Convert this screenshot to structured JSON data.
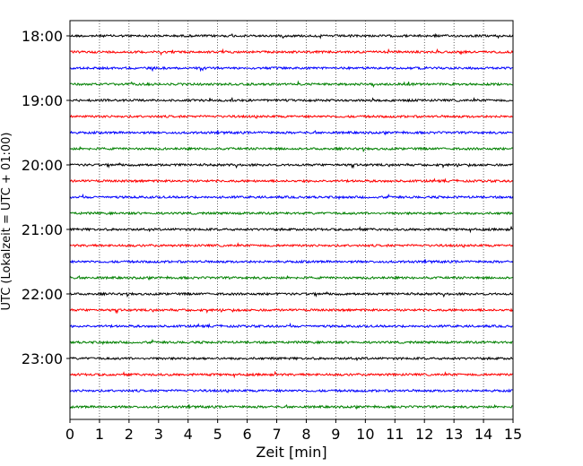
{
  "chart_data": {
    "type": "line",
    "title": "",
    "xlabel": "Zeit  [min]",
    "ylabel": "UTC (Lokalzeit = UTC + 01:00)",
    "xlim": [
      0,
      15
    ],
    "x_ticks": [
      "0",
      "1",
      "2",
      "3",
      "4",
      "5",
      "6",
      "7",
      "8",
      "9",
      "10",
      "11",
      "12",
      "13",
      "14",
      "15"
    ],
    "y_tick_labels": [
      "18:00",
      "19:00",
      "20:00",
      "21:00",
      "22:00",
      "23:00"
    ],
    "grid": "vertical dotted lines at each minute",
    "trace_interval_min": 15,
    "traces_per_hour": 4,
    "color_cycle": [
      "#000000",
      "#ff0000",
      "#0000ff",
      "#008000"
    ],
    "start_time": "18:00",
    "end_time": "23:45",
    "series": [
      {
        "start": "18:00",
        "color": "#000000"
      },
      {
        "start": "18:15",
        "color": "#ff0000"
      },
      {
        "start": "18:30",
        "color": "#0000ff"
      },
      {
        "start": "18:45",
        "color": "#008000"
      },
      {
        "start": "19:00",
        "color": "#000000"
      },
      {
        "start": "19:15",
        "color": "#ff0000"
      },
      {
        "start": "19:30",
        "color": "#0000ff"
      },
      {
        "start": "19:45",
        "color": "#008000"
      },
      {
        "start": "20:00",
        "color": "#000000"
      },
      {
        "start": "20:15",
        "color": "#ff0000"
      },
      {
        "start": "20:30",
        "color": "#0000ff"
      },
      {
        "start": "20:45",
        "color": "#008000"
      },
      {
        "start": "21:00",
        "color": "#000000"
      },
      {
        "start": "21:15",
        "color": "#ff0000"
      },
      {
        "start": "21:30",
        "color": "#0000ff"
      },
      {
        "start": "21:45",
        "color": "#008000"
      },
      {
        "start": "22:00",
        "color": "#000000"
      },
      {
        "start": "22:15",
        "color": "#ff0000"
      },
      {
        "start": "22:30",
        "color": "#0000ff"
      },
      {
        "start": "22:45",
        "color": "#008000"
      },
      {
        "start": "23:00",
        "color": "#000000"
      },
      {
        "start": "23:15",
        "color": "#ff0000"
      },
      {
        "start": "23:30",
        "color": "#0000ff"
      },
      {
        "start": "23:45",
        "color": "#008000"
      }
    ]
  }
}
